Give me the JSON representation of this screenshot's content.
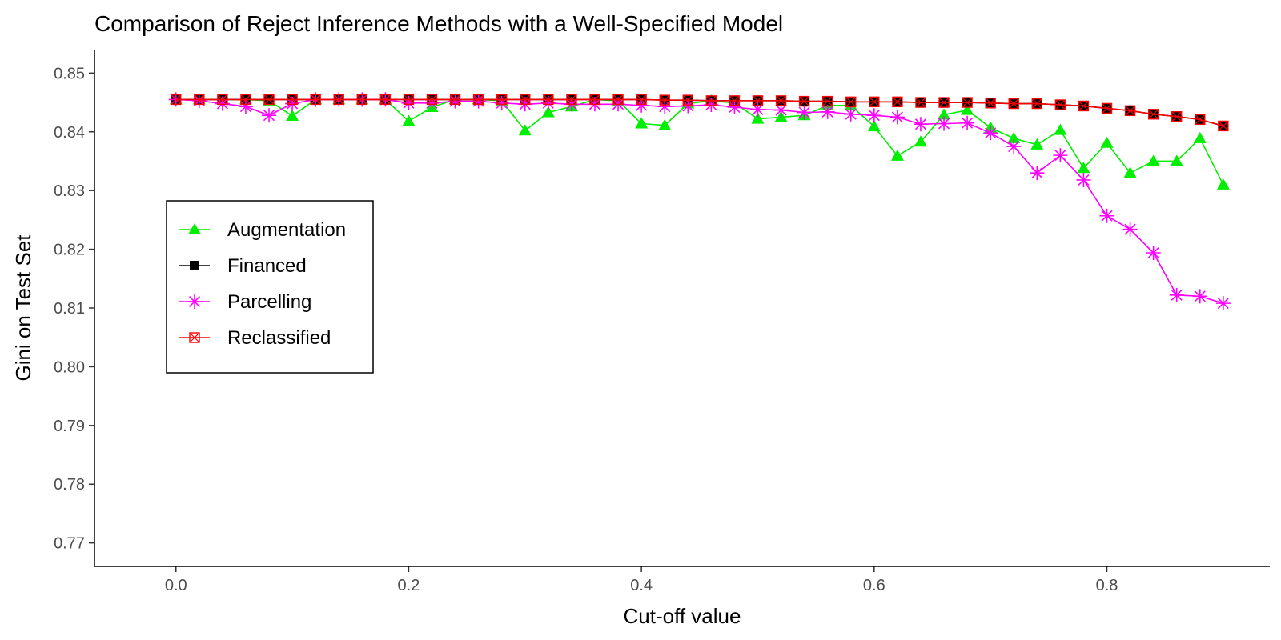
{
  "chart_data": {
    "type": "line",
    "title": "Comparison of Reject Inference Methods with a Well-Specified Model",
    "xlabel": "Cut-off value",
    "ylabel": "Gini on Test Set",
    "xlim": [
      -0.07,
      0.94
    ],
    "ylim": [
      0.766,
      0.854
    ],
    "xticks": [
      0.0,
      0.2,
      0.4,
      0.6,
      0.8
    ],
    "xtick_labels": [
      "0.0",
      "0.2",
      "0.4",
      "0.6",
      "0.8"
    ],
    "yticks": [
      0.77,
      0.78,
      0.79,
      0.8,
      0.81,
      0.82,
      0.83,
      0.84,
      0.85
    ],
    "ytick_labels": [
      "0.77",
      "0.78",
      "0.79",
      "0.80",
      "0.81",
      "0.82",
      "0.83",
      "0.84",
      "0.85"
    ],
    "grid": false,
    "legend_position": "left",
    "x": [
      0.0,
      0.02,
      0.04,
      0.06,
      0.08,
      0.1,
      0.12,
      0.14,
      0.16,
      0.18,
      0.2,
      0.22,
      0.24,
      0.26,
      0.28,
      0.3,
      0.32,
      0.34,
      0.36,
      0.38,
      0.4,
      0.42,
      0.44,
      0.46,
      0.48,
      0.5,
      0.52,
      0.54,
      0.56,
      0.58,
      0.6,
      0.62,
      0.64,
      0.66,
      0.68,
      0.7,
      0.72,
      0.74,
      0.76,
      0.78,
      0.8,
      0.82,
      0.84,
      0.86,
      0.88,
      0.9
    ],
    "series": [
      {
        "name": "Augmentation",
        "color": "#00ee00",
        "marker": "triangle",
        "values": [
          0.8455,
          0.8455,
          0.8455,
          0.8455,
          0.8453,
          0.8427,
          0.8455,
          0.8455,
          0.8455,
          0.8455,
          0.8418,
          0.8442,
          0.8455,
          0.8455,
          0.8453,
          0.8402,
          0.8433,
          0.8443,
          0.8455,
          0.8453,
          0.8414,
          0.8411,
          0.8448,
          0.8453,
          0.8449,
          0.8422,
          0.8425,
          0.8428,
          0.8445,
          0.8445,
          0.8409,
          0.8359,
          0.8383,
          0.8429,
          0.8437,
          0.8407,
          0.8389,
          0.8378,
          0.8403,
          0.8338,
          0.8381,
          0.833,
          0.835,
          0.835,
          0.8389,
          0.831
        ]
      },
      {
        "name": "Financed",
        "color": "#000000",
        "marker": "square",
        "values": [
          0.8455,
          0.8455,
          0.8455,
          0.8455,
          0.8455,
          0.8455,
          0.8455,
          0.8455,
          0.8455,
          0.8455,
          0.8455,
          0.8455,
          0.8455,
          0.8455,
          0.8455,
          0.8455,
          0.8455,
          0.8455,
          0.8455,
          0.8455,
          0.8455,
          0.8454,
          0.8454,
          0.8453,
          0.8453,
          0.8453,
          0.8453,
          0.8452,
          0.8452,
          0.8451,
          0.8451,
          0.8451,
          0.845,
          0.845,
          0.845,
          0.8449,
          0.8448,
          0.8448,
          0.8446,
          0.8444,
          0.844,
          0.8436,
          0.843,
          0.8426,
          0.8421,
          0.841
        ]
      },
      {
        "name": "Parcelling",
        "color": "#ff00ff",
        "marker": "asterisk",
        "values": [
          0.8455,
          0.8453,
          0.8448,
          0.8443,
          0.8428,
          0.8448,
          0.8455,
          0.8455,
          0.8455,
          0.8455,
          0.8449,
          0.8449,
          0.8452,
          0.8452,
          0.8449,
          0.8447,
          0.8449,
          0.8447,
          0.8447,
          0.8447,
          0.8445,
          0.8443,
          0.8444,
          0.8446,
          0.8442,
          0.8438,
          0.8437,
          0.8433,
          0.8434,
          0.843,
          0.8428,
          0.8425,
          0.8413,
          0.8414,
          0.8415,
          0.8398,
          0.8375,
          0.833,
          0.836,
          0.8318,
          0.8257,
          0.8234,
          0.8194,
          0.8122,
          0.812,
          0.8108
        ]
      },
      {
        "name": "Reclassified",
        "color": "#ff0000",
        "marker": "square-x",
        "values": [
          0.8455,
          0.8455,
          0.8455,
          0.8455,
          0.8455,
          0.8455,
          0.8455,
          0.8455,
          0.8455,
          0.8455,
          0.8455,
          0.8455,
          0.8455,
          0.8455,
          0.8455,
          0.8455,
          0.8455,
          0.8455,
          0.8455,
          0.8455,
          0.8455,
          0.8454,
          0.8454,
          0.8453,
          0.8453,
          0.8453,
          0.8453,
          0.8452,
          0.8452,
          0.8451,
          0.8451,
          0.8451,
          0.845,
          0.845,
          0.845,
          0.8449,
          0.8448,
          0.8448,
          0.8446,
          0.8444,
          0.844,
          0.8436,
          0.843,
          0.8426,
          0.8421,
          0.841
        ]
      }
    ]
  }
}
